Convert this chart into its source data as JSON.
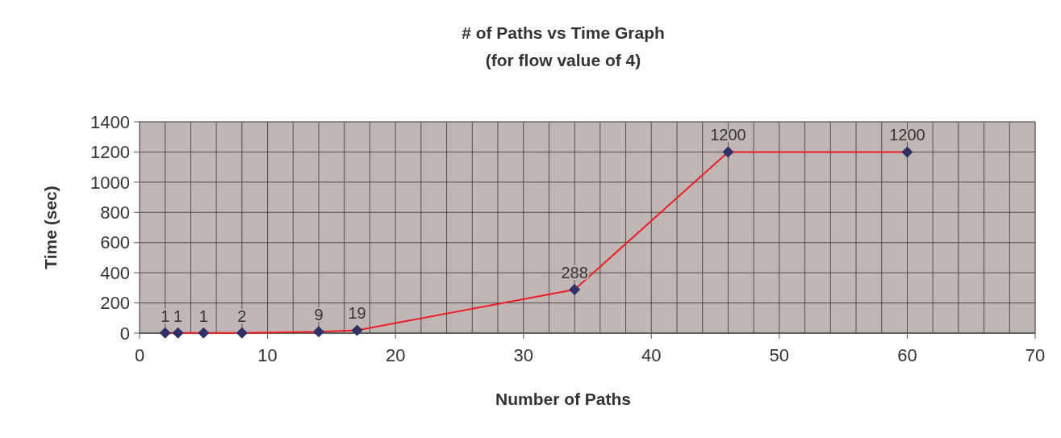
{
  "chart_data": {
    "type": "line",
    "title": "# of Paths vs Time Graph",
    "subtitle": "(for flow value of 4)",
    "xlabel": "Number of Paths",
    "ylabel": "Time (sec)",
    "x": [
      2,
      3,
      5,
      8,
      14,
      17,
      34,
      46,
      60
    ],
    "series": [
      {
        "color": "#ee1c25",
        "values": [
          1,
          1,
          1,
          2,
          9,
          19,
          288,
          1200,
          1200
        ]
      }
    ],
    "marker": "diamond",
    "data_labels": true,
    "grid": true,
    "xlim": [
      0,
      70
    ],
    "ylim": [
      0,
      1400
    ],
    "xticks": [
      0,
      {
        "value": 2,
        "label": null
      },
      {
        "value": 4,
        "label": null
      },
      {
        "value": 6,
        "label": null
      },
      {
        "value": 8,
        "label": null
      },
      10,
      {
        "value": 12,
        "label": null
      },
      {
        "value": 14,
        "label": null
      },
      {
        "value": 16,
        "label": null
      },
      {
        "value": 18,
        "label": null
      },
      20,
      {
        "value": 22,
        "label": null
      },
      {
        "value": 24,
        "label": null
      },
      {
        "value": 26,
        "label": null
      },
      {
        "value": 28,
        "label": null
      },
      30,
      {
        "value": 32,
        "label": null
      },
      {
        "value": 34,
        "label": null
      },
      {
        "value": 36,
        "label": null
      },
      {
        "value": 38,
        "label": null
      },
      40,
      {
        "value": 42,
        "label": null
      },
      {
        "value": 44,
        "label": null
      },
      {
        "value": 46,
        "label": null
      },
      {
        "value": 48,
        "label": null
      },
      50,
      {
        "value": 52,
        "label": null
      },
      {
        "value": 54,
        "label": null
      },
      {
        "value": 56,
        "label": null
      },
      {
        "value": 58,
        "label": null
      },
      60,
      {
        "value": 62,
        "label": null
      },
      {
        "value": 64,
        "label": null
      },
      {
        "value": 66,
        "label": null
      },
      {
        "value": 68,
        "label": null
      },
      70
    ],
    "yticks": [
      0,
      200,
      400,
      600,
      800,
      1000,
      1200,
      1400
    ]
  }
}
